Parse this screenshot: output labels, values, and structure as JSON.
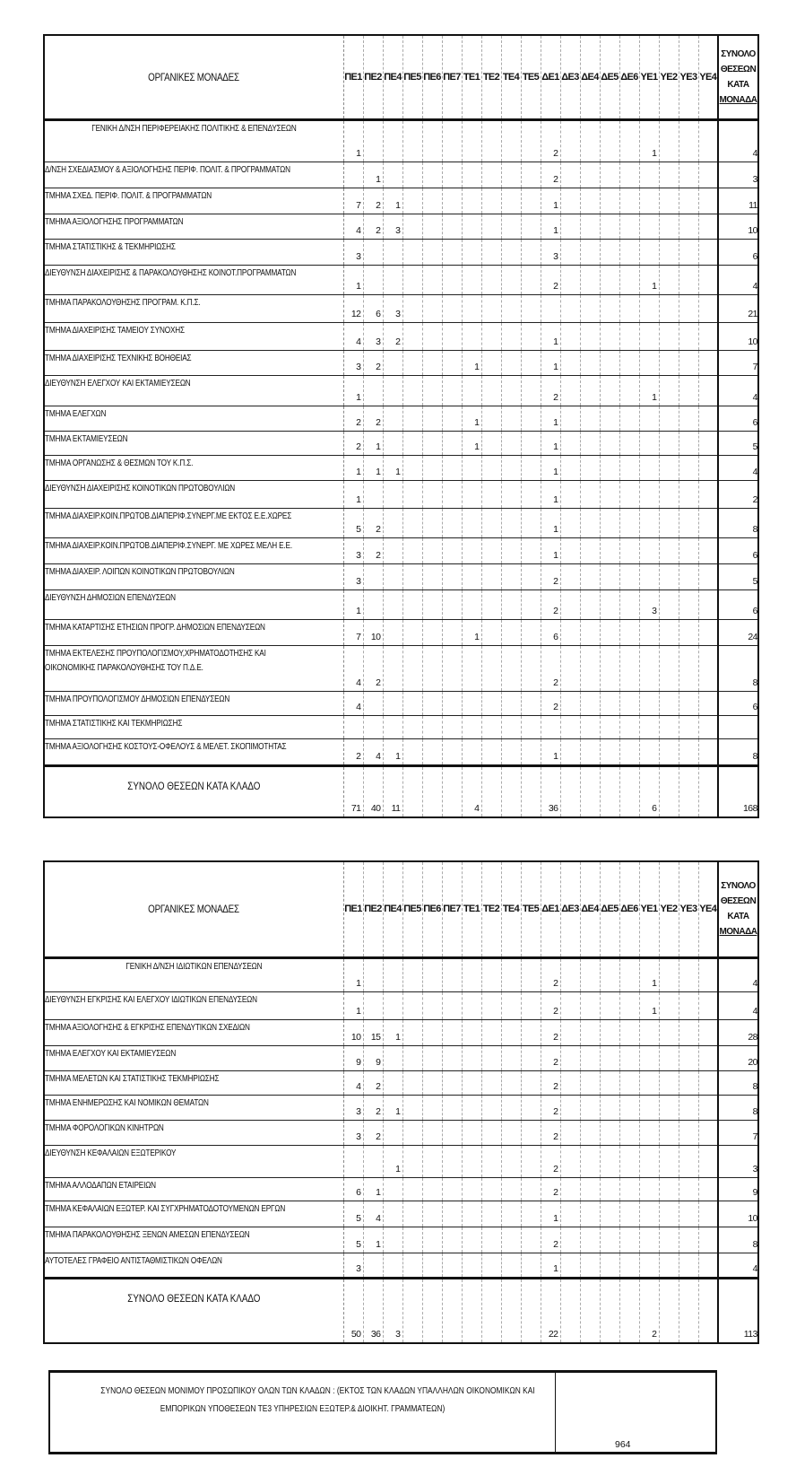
{
  "columns": [
    "ΠΕ1",
    "ΠΕ2",
    "ΠΕ4",
    "ΠΕ5",
    "ΠΕ6",
    "ΠΕ7",
    "ΤΕ1",
    "ΤΕ2",
    "ΤΕ4",
    "ΤΕ5",
    "ΔΕ1",
    "ΔΕ3",
    "ΔΕ4",
    "ΔΕ5",
    "ΔΕ6",
    "ΥΕ1",
    "ΥΕ2",
    "ΥΕ3",
    "ΥΕ4"
  ],
  "tables": [
    {
      "header_label": "ΟΡΓΑΝΙΚΕΣ ΜΟΝΑΔΕΣ",
      "total_header": [
        "ΣΥΝΟΛΟ",
        "ΘΕΣΕΩΝ",
        "ΚΑΤΑ",
        "ΜΟΝΑΔΑ"
      ],
      "rows": [
        {
          "label": "ΓΕΝΙΚΗ Δ/ΝΣΗ ΠΕΡΙΦΕΡΕΙΑΚΗΣ ΠΟΛΙΤΙΚΗΣ & ΕΠΕΝΔΥΣΕΩΝ",
          "centered": true,
          "values": {
            "ΠΕ1": "1",
            "ΔΕ1": "2",
            "ΥΕ1": "1"
          },
          "total": "4"
        },
        {
          "label": "Δ/ΝΣΗ ΣΧΕΔΙΑΣΜΟΥ & ΑΞΙΟΛΟΓΗΣΗΣ ΠΕΡΙΦ. ΠΟΛΙΤ. & ΠΡΟΓΡΑΜΜΑΤΩΝ",
          "values": {
            "ΠΕ2": "1",
            "ΔΕ1": "2"
          },
          "total": "3"
        },
        {
          "label": "ΤΜΗΜΑ  ΣΧΕΔ. ΠΕΡΙΦ. ΠΟΛΙΤ. & ΠΡΟΓΡΑΜΜΑΤΩΝ",
          "values": {
            "ΠΕ1": "7",
            "ΠΕ2": "2",
            "ΠΕ4": "1",
            "ΔΕ1": "1"
          },
          "total": "11"
        },
        {
          "label": "ΤΜΗΜΑ  ΑΞΙΟΛΟΓΗΣΗΣ ΠΡΟΓΡΑΜΜΑΤΩΝ",
          "values": {
            "ΠΕ1": "4",
            "ΠΕ2": "2",
            "ΠΕ4": "3",
            "ΔΕ1": "1"
          },
          "total": "10"
        },
        {
          "label": "ΤΜΗΜΑ  ΣΤΑΤΙΣΤΙΚΗΣ & ΤΕΚΜΗΡΙΩΣΗΣ",
          "values": {
            "ΠΕ1": "3",
            "ΔΕ1": "3"
          },
          "total": "6"
        },
        {
          "label": "ΔΙΕΥΘΥΝΣΗ ΔΙΑΧΕΙΡΙΣΗΣ & ΠΑΡΑΚΟΛΟΥΘΗΣΗΣ ΚΟΙΝΟΤ.ΠΡΟΓΡΑΜΜΑΤΩΝ",
          "values": {
            "ΠΕ1": "1",
            "ΔΕ1": "2",
            "ΥΕ1": "1"
          },
          "total": "4"
        },
        {
          "label": "ΤΜΗΜΑ  ΠΑΡΑΚΟΛΟΥΘΗΣΗΣ ΠΡΟΓΡΑΜ. Κ.Π.Σ.",
          "values": {
            "ΠΕ1": "12",
            "ΠΕ2": "6",
            "ΠΕ4": "3"
          },
          "total": "21"
        },
        {
          "label": "ΤΜΗΜΑ  ΔΙΑΧΕΙΡΙΣΗΣ ΤΑΜΕΙΟΥ ΣΥΝΟΧΗΣ",
          "values": {
            "ΠΕ1": "4",
            "ΠΕ2": "3",
            "ΠΕ4": "2",
            "ΔΕ1": "1"
          },
          "total": "10"
        },
        {
          "label": "ΤΜΗΜΑ  ΔΙΑΧΕΙΡΙΣΗΣ ΤΕΧΝΙΚΗΣ ΒΟΗΘΕΙΑΣ",
          "values": {
            "ΠΕ1": "3",
            "ΠΕ2": "2",
            "ΤΕ1": "1",
            "ΔΕ1": "1"
          },
          "total": "7"
        },
        {
          "label": "ΔΙΕΥΘΥΝΣΗ ΕΛΕΓΧΟΥ ΚΑΙ ΕΚΤΑΜΙΕΥΣΕΩΝ",
          "values": {
            "ΠΕ1": "1",
            "ΔΕ1": "2",
            "ΥΕ1": "1"
          },
          "total": "4"
        },
        {
          "label": "ΤΜΗΜΑ  ΕΛΕΓΧΩΝ",
          "values": {
            "ΠΕ1": "2",
            "ΠΕ2": "2",
            "ΤΕ1": "1",
            "ΔΕ1": "1"
          },
          "total": "6"
        },
        {
          "label": "ΤΜΗΜΑ ΕΚΤΑΜΙΕΥΣΕΩΝ",
          "values": {
            "ΠΕ1": "2",
            "ΠΕ2": "1",
            "ΤΕ1": "1",
            "ΔΕ1": "1"
          },
          "total": "5"
        },
        {
          "label": "ΤΜΗΜΑ ΟΡΓΑΝΩΣΗΣ & ΘΕΣΜΩΝ ΤΟΥ Κ.Π.Σ.",
          "values": {
            "ΠΕ1": "1",
            "ΠΕ2": "1",
            "ΠΕ4": "1",
            "ΔΕ1": "1"
          },
          "total": "4"
        },
        {
          "label": "ΔΙΕΥΘΥΝΣΗ ΔΙΑΧΕΙΡΙΣΗΣ ΚΟΙΝΟΤΙΚΩΝ ΠΡΩΤΟΒΟΥΛΙΩΝ",
          "values": {
            "ΠΕ1": "1",
            "ΔΕ1": "1"
          },
          "total": "2"
        },
        {
          "label": "ΤΜΗΜΑ  ΔΙΑΧΕΙΡ.ΚΟΙΝ.ΠΡΩΤΟΒ.ΔΙΑΠΕΡΙΦ.ΣΥΝΕΡΓ.ΜΕ ΕΚΤΟΣ Ε.Ε.ΧΩΡΕΣ",
          "values": {
            "ΠΕ1": "5",
            "ΠΕ2": "2",
            "ΔΕ1": "1"
          },
          "total": "8"
        },
        {
          "label": "ΤΜΗΜΑ  ΔΙΑΧΕΙΡ.ΚΟΙΝ.ΠΡΩΤΟΒ.ΔΙΑΠΕΡΙΦ.ΣΥΝΕΡΓ. ΜΕ ΧΩΡΕΣ ΜΕΛΗ Ε.Ε.",
          "values": {
            "ΠΕ1": "3",
            "ΠΕ2": "2",
            "ΔΕ1": "1"
          },
          "total": "6"
        },
        {
          "label": "ΤΜΗΜΑ  ΔΙΑΧΕΙΡ. ΛΟΙΠΩΝ ΚΟΙΝΟΤΙΚΩΝ ΠΡΩΤΟΒΟΥΛΙΩΝ",
          "values": {
            "ΠΕ1": "3",
            "ΔΕ1": "2"
          },
          "total": "5"
        },
        {
          "label": "ΔΙΕΥΘΥΝΣΗ ΔΗΜΟΣΙΩΝ ΕΠΕΝΔΥΣΕΩΝ",
          "values": {
            "ΠΕ1": "1",
            "ΔΕ1": "2",
            "ΥΕ1": "3"
          },
          "total": "6"
        },
        {
          "label": "ΤΜΗΜΑ  ΚΑΤΑΡΤΙΣΗΣ ΕΤΗΣΙΩΝ ΠΡΟΓΡ. ΔΗΜΟΣΙΩΝ ΕΠΕΝΔΥΣΕΩΝ",
          "values": {
            "ΠΕ1": "7",
            "ΠΕ2": "10",
            "ΤΕ1": "1",
            "ΔΕ1": "6"
          },
          "total": "24"
        },
        {
          "label": "ΤΜΗΜΑ  ΕΚΤΕΛΕΣΗΣ ΠΡΟΥΠΟΛΟΓΙΣΜΟΥ,ΧΡΗΜΑΤΟΔΟΤΗΣΗΣ ΚΑΙ",
          "label2": "ΟΙΚΟΝΟΜΙΚΗΣ ΠΑΡΑΚΟΛΟΥΘΗΣΗΣ ΤΟΥ Π.Δ.Ε.",
          "values": {
            "ΠΕ1": "4",
            "ΠΕ2": "2",
            "ΔΕ1": "2"
          },
          "total": "8"
        },
        {
          "label": "ΤΜΗΜΑ  ΠΡΟΥΠΟΛΟΓΙΣΜΟΥ ΔΗΜΟΣΙΩΝ ΕΠΕΝΔΥΣΕΩΝ",
          "values": {
            "ΠΕ1": "4",
            "ΔΕ1": "2"
          },
          "total": "6"
        },
        {
          "label": "ΤΜΗΜΑ ΣΤΑΤΙΣΤΙΚΗΣ ΚΑΙ ΤΕΚΜΗΡΙΩΣΗΣ",
          "values": {},
          "total": ""
        },
        {
          "label": "ΤΜΗΜΑ  ΑΞΙΟΛΟΓΗΣΗΣ ΚΟΣΤΟΥΣ-ΟΦΕΛΟΥΣ & ΜΕΛΕΤ. ΣΚΟΠΙΜΟΤΗΤΑΣ",
          "values": {
            "ΠΕ1": "2",
            "ΠΕ2": "4",
            "ΠΕ4": "1",
            "ΔΕ1": "1"
          },
          "total": "8"
        }
      ],
      "footer": {
        "label": "ΣΥΝΟΛΟ ΘΕΣΕΩΝ ΚΑΤΑ ΚΛΑΔΟ",
        "values": {
          "ΠΕ1": "71",
          "ΠΕ2": "40",
          "ΠΕ4": "11",
          "ΤΕ1": "4",
          "ΔΕ1": "36",
          "ΥΕ1": "6"
        },
        "total": "168"
      }
    },
    {
      "header_label": "ΟΡΓΑΝΙΚΕΣ ΜΟΝΑΔΕΣ",
      "total_header": [
        "ΣΥΝΟΛΟ",
        "ΘΕΣΕΩΝ",
        "ΚΑΤΑ",
        "ΜΟΝΑΔΑ"
      ],
      "rows": [
        {
          "label": "ΓΕΝΙΚΗ Δ/ΝΣΗ ΙΔΙΩΤΙΚΩΝ ΕΠΕΝΔΥΣΕΩΝ",
          "centered": true,
          "values": {
            "ΠΕ1": "1",
            "ΔΕ1": "2",
            "ΥΕ1": "1"
          },
          "total": "4"
        },
        {
          "label": "ΔΙΕΥΘΥΝΣΗ ΕΓΚΡΙΣΗΣ ΚΑΙ ΕΛΕΓΧΟΥ ΙΔΙΩΤΙΚΩΝ ΕΠΕΝΔΥΣΕΩΝ",
          "values": {
            "ΠΕ1": "1",
            "ΔΕ1": "2",
            "ΥΕ1": "1"
          },
          "total": "4"
        },
        {
          "label": "ΤΜΗΜΑ ΑΞΙΟΛΟΓΗΣΗΣ & ΕΓΚΡΙΣΗΣ ΕΠΕΝΔΥΤΙΚΩΝ ΣΧΕΔΙΩΝ",
          "values": {
            "ΠΕ1": "10",
            "ΠΕ2": "15",
            "ΠΕ4": "1",
            "ΔΕ1": "2"
          },
          "total": "28"
        },
        {
          "label": "ΤΜΗΜΑ ΕΛΕΓΧΟΥ ΚΑΙ ΕΚΤΑΜΙΕΥΣΕΩΝ",
          "values": {
            "ΠΕ1": "9",
            "ΠΕ2": "9",
            "ΔΕ1": "2"
          },
          "total": "20"
        },
        {
          "label": "ΤΜΗΜΑ ΜΕΛΕΤΩΝ ΚΑΙ ΣΤΑΤΙΣΤΙΚΗΣ ΤΕΚΜΗΡΙΩΣΗΣ",
          "values": {
            "ΠΕ1": "4",
            "ΠΕ2": "2",
            "ΔΕ1": "2"
          },
          "total": "8"
        },
        {
          "label": "ΤΜΗΜΑ ΕΝΗΜΕΡΩΣΗΣ ΚΑΙ ΝΟΜΙΚΩΝ ΘΕΜΑΤΩΝ",
          "values": {
            "ΠΕ1": "3",
            "ΠΕ2": "2",
            "ΠΕ4": "1",
            "ΔΕ1": "2"
          },
          "total": "8"
        },
        {
          "label": "ΤΜΗΜΑ ΦΟΡΟΛΟΓΙΚΩΝ ΚΙΝΗΤΡΩΝ",
          "values": {
            "ΠΕ1": "3",
            "ΠΕ2": "2",
            "ΔΕ1": "2"
          },
          "total": "7"
        },
        {
          "label": "ΔΙΕΥΘΥΝΣΗ ΚΕΦΑΛΑΙΩΝ ΕΞΩΤΕΡΙΚΟΥ",
          "values": {
            "ΠΕ4": "1",
            "ΔΕ1": "2"
          },
          "total": "3"
        },
        {
          "label": "ΤΜΗΜΑ ΑΛΛΟΔΑΠΩΝ ΕΤΑΙΡΕΙΩΝ",
          "values": {
            "ΠΕ1": "6",
            "ΠΕ2": "1",
            "ΔΕ1": "2"
          },
          "total": "9"
        },
        {
          "label": "ΤΜΗΜΑ ΚΕΦΑΛΑΙΩΝ ΕΞΩΤΕΡ. ΚΑΙ ΣΥΓΧΡΗΜΑΤΟΔΟΤΟΥΜΕΝΩΝ ΕΡΓΩΝ",
          "values": {
            "ΠΕ1": "5",
            "ΠΕ2": "4",
            "ΔΕ1": "1"
          },
          "total": "10"
        },
        {
          "label": "ΤΜΗΜΑ ΠΑΡΑΚΟΛΟΥΘΗΣΗΣ ΞΕΝΩΝ ΑΜΕΣΩΝ ΕΠΕΝΔΥΣΕΩΝ",
          "values": {
            "ΠΕ1": "5",
            "ΠΕ2": "1",
            "ΔΕ1": "2"
          },
          "total": "8"
        },
        {
          "label": "ΑΥΤΟΤΕΛΕΣ ΓΡΑΦΕΙΟ ΑΝΤΙΣΤΑΘΜΙΣΤΙΚΩΝ ΟΦΕΛΩΝ",
          "values": {
            "ΠΕ1": "3",
            "ΔΕ1": "1"
          },
          "total": "4"
        }
      ],
      "footer": {
        "label": "ΣΥΝΟΛΟ ΘΕΣΕΩΝ ΚΑΤΑ ΚΛΑΔΟ",
        "values": {
          "ΠΕ1": "50",
          "ΠΕ2": "36",
          "ΠΕ4": "3",
          "ΔΕ1": "22",
          "ΥΕ1": "2"
        },
        "total": "113"
      }
    }
  ],
  "summary": {
    "text_lines": [
      "ΣΥΝΟΛΟ ΘΕΣΕΩΝ ΜΟΝΙΜΟΥ ΠΡΟΣΩΠΙΚΟΥ ΟΛΩΝ ΤΩΝ ΚΛΑΔΩΝ : (ΕΚΤΟΣ ΤΩΝ ΚΛΑΔΩΝ ΥΠΑΛΛΗΛΩΝ ΟΙΚΟΝΟΜΙΚΩΝ ΚΑΙ",
      "ΕΜΠΟΡΙΚΩΝ ΥΠΟΘΕΣΕΩΝ ΤΕ3 ΥΠΗΡΕΣΙΩΝ ΕΞΩΤΕΡ.& ΔΙΟΙΚΗΤ. ΓΡΑΜΜΑΤΕΩΝ)"
    ],
    "value": "964"
  }
}
